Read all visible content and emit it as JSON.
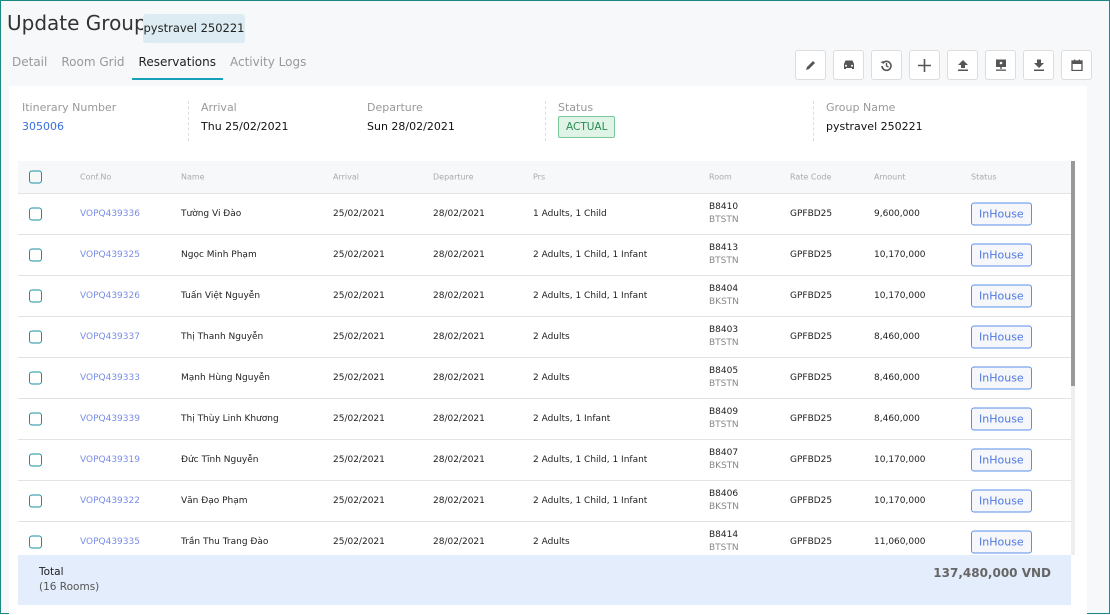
{
  "header": {
    "title": "Update Group",
    "group_badge": "pystravel 250221"
  },
  "tabs": [
    {
      "label": "Detail"
    },
    {
      "label": "Room Grid"
    },
    {
      "label": "Reservations",
      "active": true
    },
    {
      "label": "Activity Logs"
    }
  ],
  "toolbar": [
    "edit-icon",
    "car-icon",
    "history-icon",
    "plus-icon",
    "upload-icon",
    "monitor-icon",
    "download-icon",
    "calendar-icon"
  ],
  "info": {
    "itinerary_label": "Itinerary Number",
    "itinerary_value": "305006",
    "arrival_label": "Arrival",
    "arrival_value": "Thu 25/02/2021",
    "departure_label": "Departure",
    "departure_value": "Sun 28/02/2021",
    "status_label": "Status",
    "status_value": "ACTUAL",
    "group_name_label": "Group Name",
    "group_name_value": "pystravel 250221"
  },
  "table": {
    "columns": [
      "Conf.No",
      "Name",
      "Arrival",
      "Departure",
      "Prs",
      "Room",
      "Rate Code",
      "Amount",
      "Status"
    ],
    "rows": [
      {
        "conf": "VOPQ439336",
        "name": "Tường Vi Đào",
        "arrival": "25/02/2021",
        "departure": "28/02/2021",
        "prs": "1 Adults, 1 Child",
        "room": "B8410",
        "room_type": "BTSTN",
        "rate": "GPFBD25",
        "amount": "9,600,000",
        "status": "InHouse"
      },
      {
        "conf": "VOPQ439325",
        "name": "Ngọc Minh Phạm",
        "arrival": "25/02/2021",
        "departure": "28/02/2021",
        "prs": "2 Adults, 1 Child, 1 Infant",
        "room": "B8413",
        "room_type": "BTSTN",
        "rate": "GPFBD25",
        "amount": "10,170,000",
        "status": "InHouse"
      },
      {
        "conf": "VOPQ439326",
        "name": "Tuấn Việt Nguyễn",
        "arrival": "25/02/2021",
        "departure": "28/02/2021",
        "prs": "2 Adults, 1 Child, 1 Infant",
        "room": "B8404",
        "room_type": "BKSTN",
        "rate": "GPFBD25",
        "amount": "10,170,000",
        "status": "InHouse"
      },
      {
        "conf": "VOPQ439337",
        "name": "Thị Thanh Nguyễn",
        "arrival": "25/02/2021",
        "departure": "28/02/2021",
        "prs": "2 Adults",
        "room": "B8403",
        "room_type": "BTSTN",
        "rate": "GPFBD25",
        "amount": "8,460,000",
        "status": "InHouse"
      },
      {
        "conf": "VOPQ439333",
        "name": "Mạnh Hùng Nguyễn",
        "arrival": "25/02/2021",
        "departure": "28/02/2021",
        "prs": "2 Adults",
        "room": "B8405",
        "room_type": "BTSTN",
        "rate": "GPFBD25",
        "amount": "8,460,000",
        "status": "InHouse"
      },
      {
        "conf": "VOPQ439339",
        "name": "Thị Thùy Linh Khương",
        "arrival": "25/02/2021",
        "departure": "28/02/2021",
        "prs": "2 Adults, 1 Infant",
        "room": "B8409",
        "room_type": "BTSTN",
        "rate": "GPFBD25",
        "amount": "8,460,000",
        "status": "InHouse"
      },
      {
        "conf": "VOPQ439319",
        "name": "Đức Tĩnh Nguyễn",
        "arrival": "25/02/2021",
        "departure": "28/02/2021",
        "prs": "2 Adults, 1 Child, 1 Infant",
        "room": "B8407",
        "room_type": "BKSTN",
        "rate": "GPFBD25",
        "amount": "10,170,000",
        "status": "InHouse"
      },
      {
        "conf": "VOPQ439322",
        "name": "Văn Đạo Phạm",
        "arrival": "25/02/2021",
        "departure": "28/02/2021",
        "prs": "2 Adults, 1 Child, 1 Infant",
        "room": "B8406",
        "room_type": "BKSTN",
        "rate": "GPFBD25",
        "amount": "10,170,000",
        "status": "InHouse"
      },
      {
        "conf": "VOPQ439335",
        "name": "Trần Thu Trang Đào",
        "arrival": "25/02/2021",
        "departure": "28/02/2021",
        "prs": "2 Adults",
        "room": "B8414",
        "room_type": "BTSTN",
        "rate": "GPFBD25",
        "amount": "11,060,000",
        "status": "InHouse"
      }
    ]
  },
  "footer": {
    "total_label": "Total",
    "rooms_label": "(16 Rooms)",
    "total_amount": "137,480,000 VND"
  }
}
